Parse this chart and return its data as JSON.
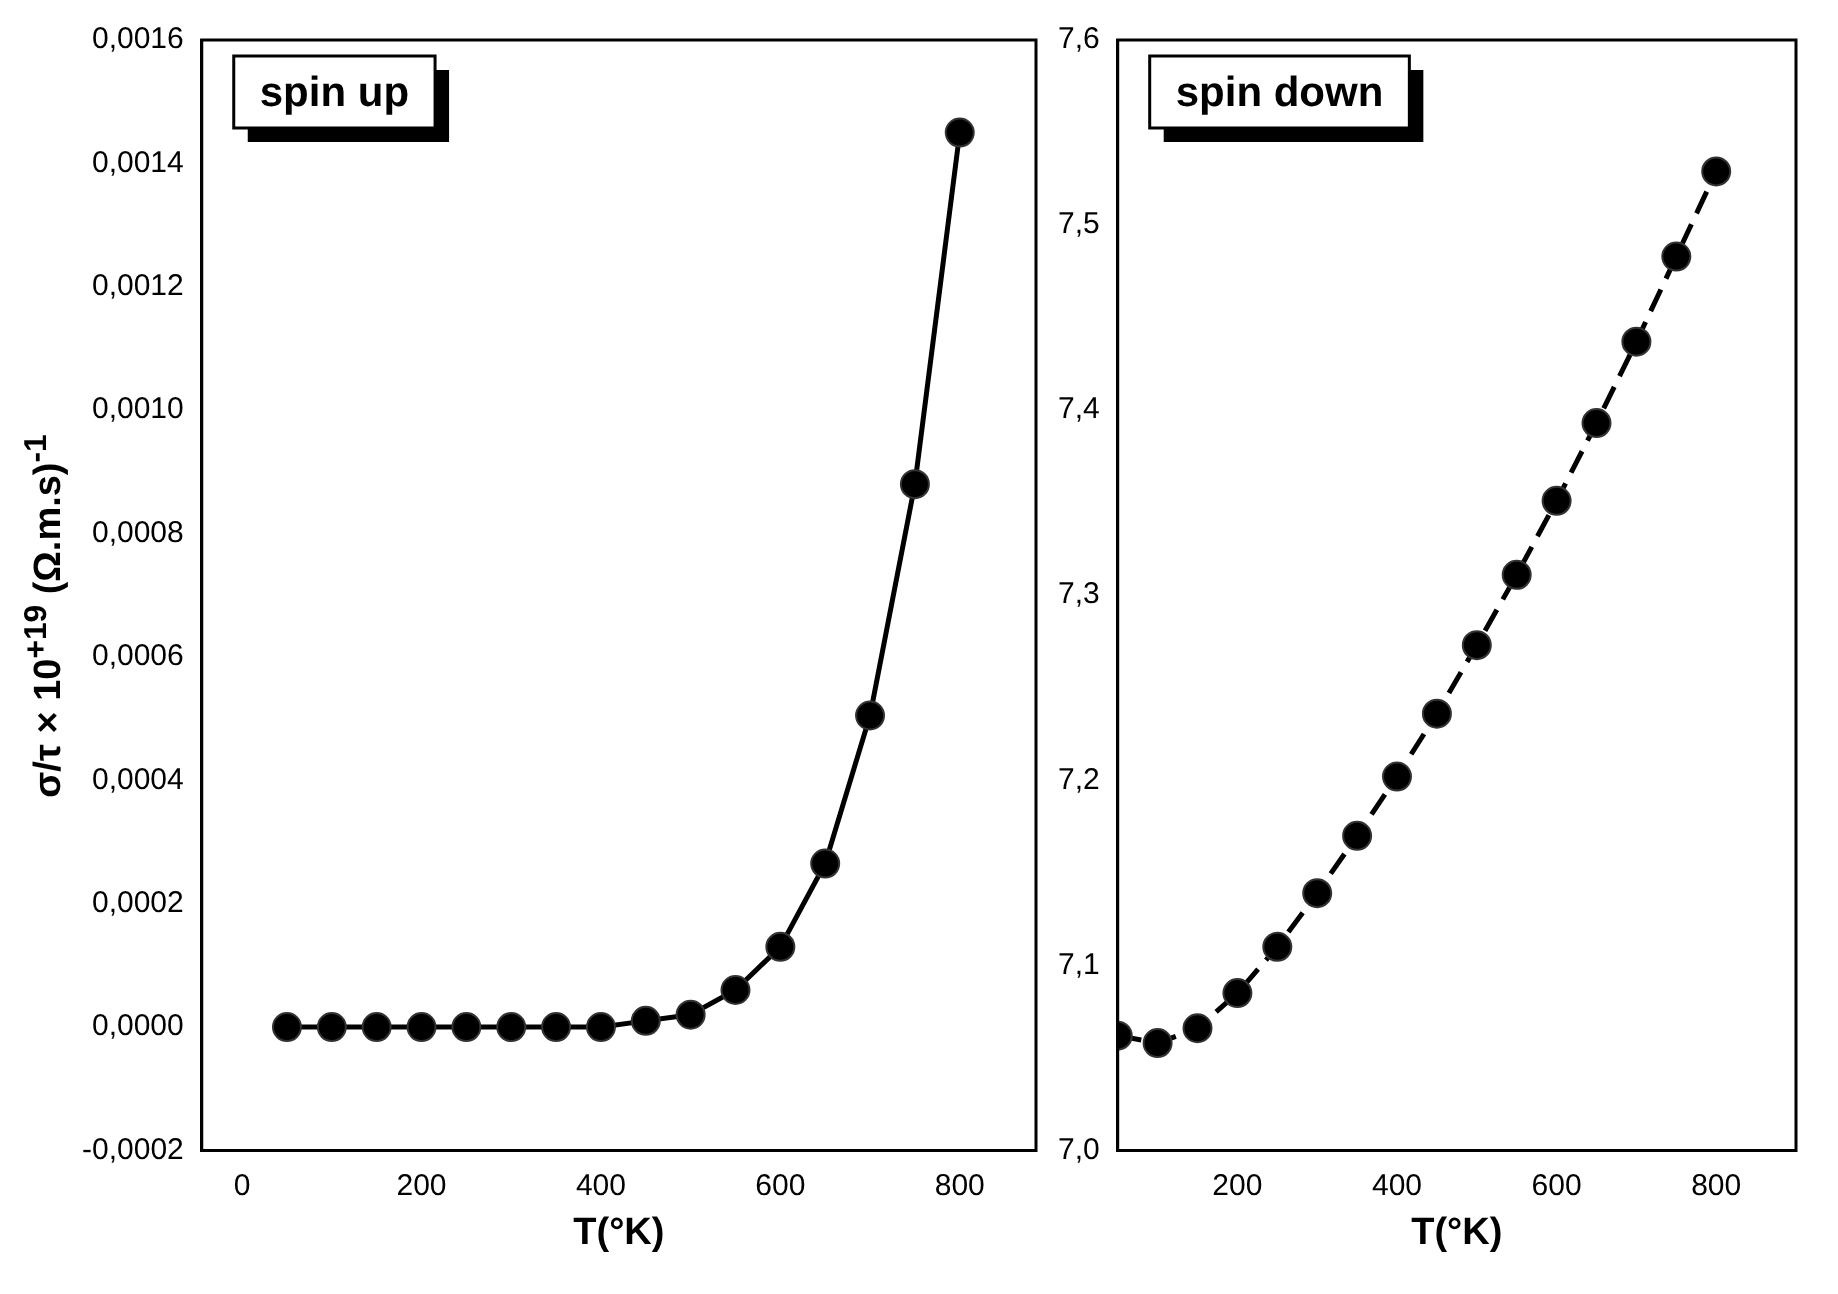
{
  "chart_data": [
    {
      "type": "line",
      "ylabel": "σ/τ × 10$^{+19}$ (Ω.m.s)$^{-1}$",
      "xlabel": "T(°K)",
      "annotations": [
        "spin up"
      ],
      "marker": "circle",
      "line_style": "solid",
      "grid": false,
      "legend": false,
      "xlim": [
        -45,
        885
      ],
      "xticks": [
        0,
        200,
        400,
        600,
        800
      ],
      "ylim": [
        -0.0002,
        0.0016
      ],
      "yticks": [
        {
          "value": -0.0002,
          "label": "-0,0002"
        },
        {
          "value": 0,
          "label": "0,0000"
        },
        {
          "value": 0.0002,
          "label": "0,0002"
        },
        {
          "value": 0.0004,
          "label": "0,0004"
        },
        {
          "value": 0.0006,
          "label": "0,0006"
        },
        {
          "value": 0.0008,
          "label": "0,0008"
        },
        {
          "value": 0.001,
          "label": "0,0010"
        },
        {
          "value": 0.0012,
          "label": "0,0012"
        },
        {
          "value": 0.0014,
          "label": "0,0014"
        },
        {
          "value": 0.0016,
          "label": "0,0016"
        }
      ],
      "x": [
        50,
        100,
        150,
        200,
        250,
        300,
        350,
        400,
        450,
        500,
        550,
        600,
        650,
        700,
        750,
        800
      ],
      "series": [
        {
          "color": "#000000",
          "values": [
            0,
            0,
            0,
            0,
            0,
            0,
            0,
            0,
            1e-05,
            2e-05,
            6e-05,
            0.00013,
            0.000265,
            0.000505,
            0.00088,
            0.00145
          ]
        }
      ]
    },
    {
      "type": "line",
      "xlabel": "T(°K)",
      "annotations": [
        "spin down"
      ],
      "marker": "circle",
      "line_style": "dashed",
      "grid": false,
      "legend": false,
      "xlim": [
        50,
        900
      ],
      "xticks": [
        200,
        400,
        600,
        800
      ],
      "ylim": [
        7.0,
        7.6
      ],
      "yticks": [
        {
          "value": 7.0,
          "label": "7,0"
        },
        {
          "value": 7.1,
          "label": "7,1"
        },
        {
          "value": 7.2,
          "label": "7,2"
        },
        {
          "value": 7.3,
          "label": "7,3"
        },
        {
          "value": 7.4,
          "label": "7,4"
        },
        {
          "value": 7.5,
          "label": "7,5"
        },
        {
          "value": 7.6,
          "label": "7,6"
        }
      ],
      "x": [
        50,
        100,
        150,
        200,
        250,
        300,
        350,
        400,
        450,
        500,
        550,
        600,
        650,
        700,
        750,
        800
      ],
      "series": [
        {
          "color": "#000000",
          "values": [
            7.062,
            7.058,
            7.066,
            7.085,
            7.11,
            7.139,
            7.17,
            7.202,
            7.236,
            7.273,
            7.311,
            7.351,
            7.393,
            7.437,
            7.483,
            7.529
          ]
        }
      ]
    }
  ]
}
